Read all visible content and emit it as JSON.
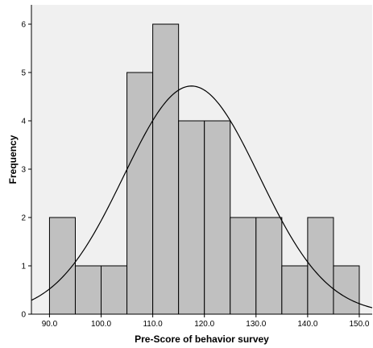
{
  "chart_data": {
    "type": "bar",
    "subtype": "histogram",
    "xlabel": "Pre-Score of behavior survey",
    "ylabel": "Frequency",
    "bins": [
      {
        "start": 90,
        "end": 95,
        "count": 2
      },
      {
        "start": 95,
        "end": 100,
        "count": 1
      },
      {
        "start": 100,
        "end": 105,
        "count": 1
      },
      {
        "start": 105,
        "end": 110,
        "count": 5
      },
      {
        "start": 110,
        "end": 115,
        "count": 6
      },
      {
        "start": 115,
        "end": 120,
        "count": 4
      },
      {
        "start": 120,
        "end": 125,
        "count": 4
      },
      {
        "start": 125,
        "end": 130,
        "count": 2
      },
      {
        "start": 130,
        "end": 135,
        "count": 2
      },
      {
        "start": 135,
        "end": 140,
        "count": 1
      },
      {
        "start": 140,
        "end": 145,
        "count": 2
      },
      {
        "start": 145,
        "end": 150,
        "count": 1
      }
    ],
    "x_ticks": [
      90,
      100,
      110,
      120,
      130,
      140,
      150
    ],
    "x_tick_labels": [
      "90.0",
      "100.0",
      "110.0",
      "120.0",
      "130.0",
      "140.0",
      "150.0"
    ],
    "y_ticks": [
      0,
      1,
      2,
      3,
      4,
      5,
      6
    ],
    "y_tick_labels": [
      "0",
      "1",
      "2",
      "3",
      "4",
      "5",
      "6"
    ],
    "xlim": [
      86.5,
      152.5
    ],
    "ylim": [
      0,
      6.4
    ],
    "normal_curve": {
      "mean": 117.5,
      "std_dev": 13.1,
      "n": 31,
      "bin_width": 5
    },
    "colors": {
      "background": "#f0f0f0",
      "bar_fill": "#c0c0c0",
      "bar_stroke": "#000000",
      "curve": "#000000"
    },
    "grid": false,
    "legend": "none"
  }
}
